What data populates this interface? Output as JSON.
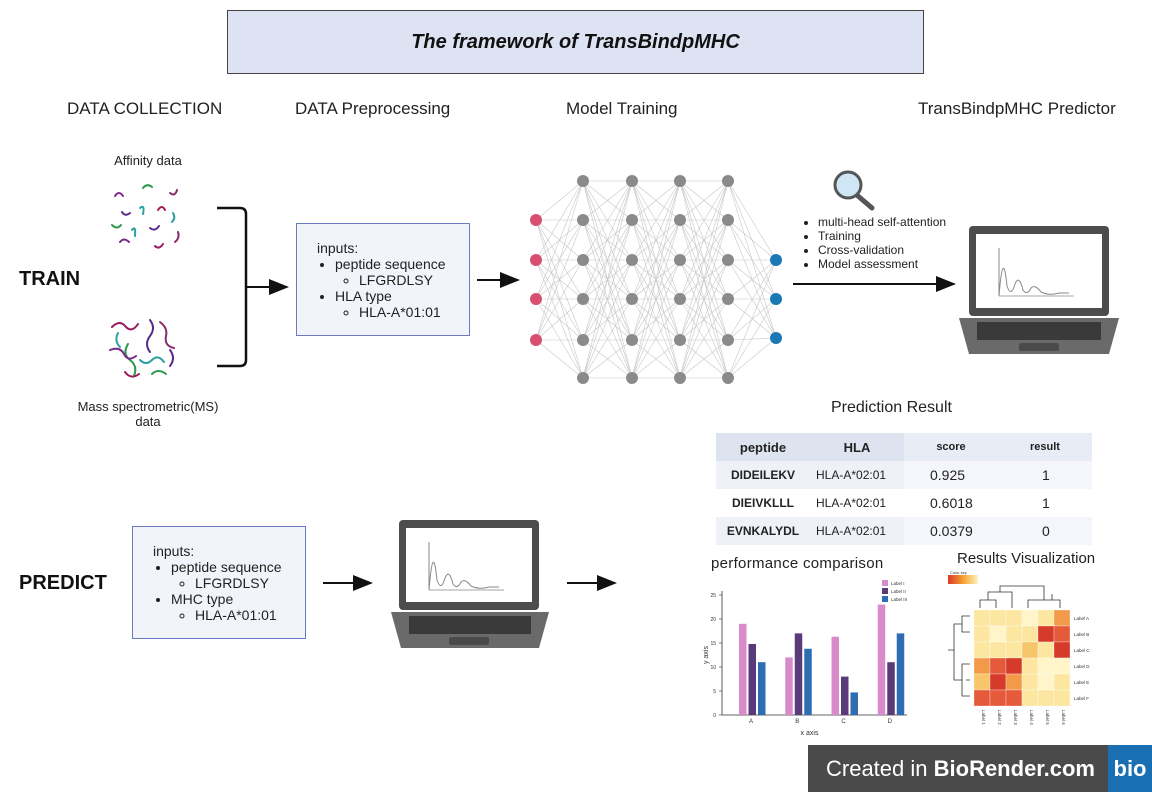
{
  "title": "The framework of TransBindpMHC",
  "stages": {
    "collection": "DATA COLLECTION",
    "preprocessing": "DATA Preprocessing",
    "training": "Model Training",
    "predictor": "TransBindpMHC Predictor"
  },
  "rows": {
    "train": "TRAIN",
    "predict": "PREDICT"
  },
  "collection": {
    "affinity_label": "Affinity data",
    "ms_label_line1": "Mass spectrometric(MS)",
    "ms_label_line2": "data"
  },
  "train_inputs": {
    "heading": "inputs:",
    "item1": "peptide sequence",
    "item1_value": "LFGRDLSY",
    "item2": "HLA type",
    "item2_value": "HLA-A*01:01"
  },
  "predict_inputs": {
    "heading": "inputs:",
    "item1": "peptide sequence",
    "item1_value": "LFGRDLSY",
    "item2": "MHC type",
    "item2_value": "HLA-A*01:01"
  },
  "training_steps": [
    "multi-head self-attention",
    "Training",
    "Cross-validation",
    "Model assessment"
  ],
  "prediction": {
    "title": "Prediction Result",
    "headers": [
      "peptide",
      "HLA",
      "score",
      "result"
    ],
    "rows": [
      [
        "DIDEILEKV",
        "HLA-A*02:01",
        "0.925",
        "1"
      ],
      [
        "DIEIVKLLL",
        "HLA-A*02:01",
        "0.6018",
        "1"
      ],
      [
        "EVNKALYDL",
        "HLA-A*02:01",
        "0.0379",
        "0"
      ]
    ]
  },
  "performance_title": "performance comparison",
  "visualization_title": "Results Visualization",
  "chart_data": {
    "type": "bar",
    "categories": [
      "A",
      "B",
      "C",
      "D"
    ],
    "series": [
      {
        "name": "Label I",
        "values": [
          19,
          12,
          16.3,
          23
        ]
      },
      {
        "name": "Label II",
        "values": [
          14.8,
          17,
          8,
          11
        ]
      },
      {
        "name": "Label III",
        "values": [
          11,
          13.8,
          4.7,
          17
        ]
      }
    ],
    "xlabel": "x axis",
    "ylabel": "y axis",
    "ylim": [
      0,
      25
    ],
    "yticks": [
      0,
      5,
      10,
      15,
      20,
      25
    ],
    "colors": [
      "#d98bc9",
      "#5a3a7a",
      "#2f6db3"
    ],
    "legend": "top-right"
  },
  "heatmap": {
    "key_label": "Color key",
    "row_labels": [
      "Label A",
      "Label B",
      "Label C",
      "Label D",
      "Label E",
      "Label F"
    ],
    "col_labels": [
      "Label 1",
      "Label 2",
      "Label 3",
      "Label 4",
      "Label 5",
      "Label 6"
    ]
  },
  "badge": {
    "prefix": "Created in ",
    "brand": "BioRender.com",
    "logo": "bio"
  },
  "colors": {
    "input_node": "#d94f70",
    "hidden_node": "#8a8a8a",
    "output_node": "#1a78b4",
    "title_bg": "#dde3f2",
    "badge_bg": "#4a4a4a",
    "logo_bg": "#1a6fb3"
  }
}
